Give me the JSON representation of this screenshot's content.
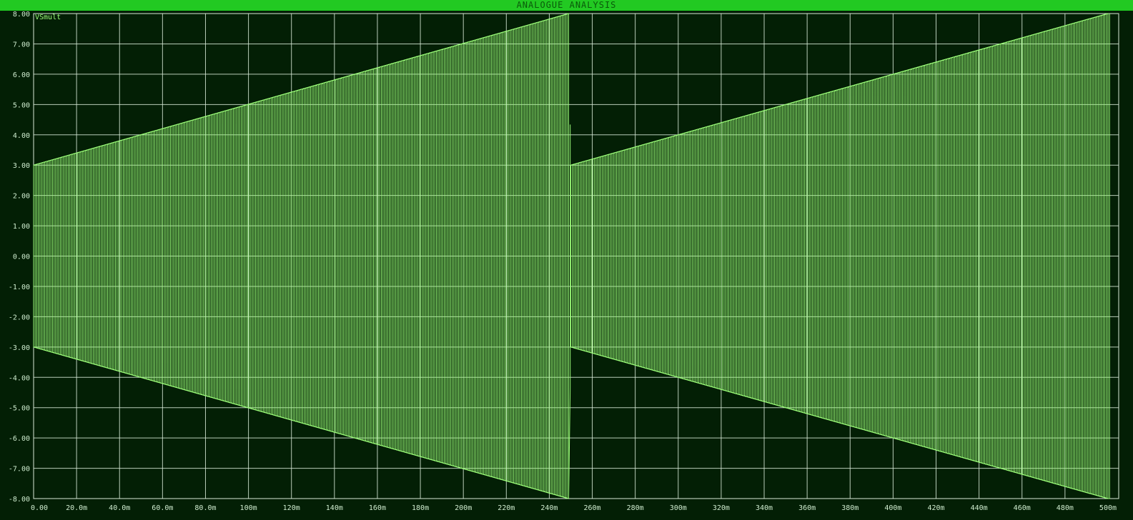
{
  "window": {
    "title": "ANALOGUE ANALYSIS"
  },
  "chart_data": {
    "type": "line",
    "title": "ANALOGUE ANALYSIS",
    "series": [
      {
        "name": "VSmult",
        "description_of_waveform": "carrier oscillating between +envelope and -envelope; envelope magnitude ramps linearly from 3 to 8 over each 250m period",
        "envelope_points": [
          [
            0,
            3.0
          ],
          [
            0.249,
            8.0
          ],
          [
            0.25,
            3.0
          ],
          [
            0.5,
            8.0
          ]
        ],
        "color": "#9dff7a"
      }
    ],
    "xlim": [
      0,
      0.505
    ],
    "ylim": [
      -8,
      8
    ],
    "x_ticks": [
      0,
      0.02,
      0.04,
      0.06,
      0.08,
      0.1,
      0.12,
      0.14,
      0.16,
      0.18,
      0.2,
      0.22,
      0.24,
      0.26,
      0.28,
      0.3,
      0.32,
      0.34,
      0.36,
      0.38,
      0.4,
      0.42,
      0.44,
      0.46,
      0.48,
      0.5
    ],
    "x_tick_labels": [
      "0.00",
      "20.0m",
      "40.0m",
      "60.0m",
      "80.0m",
      "100m",
      "120m",
      "140m",
      "160m",
      "180m",
      "200m",
      "220m",
      "240m",
      "260m",
      "280m",
      "300m",
      "320m",
      "340m",
      "360m",
      "380m",
      "400m",
      "420m",
      "440m",
      "460m",
      "480m",
      "500m"
    ],
    "y_ticks": [
      8,
      7,
      6,
      5,
      4,
      3,
      2,
      1,
      0,
      -1,
      -2,
      -3,
      -4,
      -5,
      -6,
      -7,
      -8
    ],
    "y_tick_labels": [
      "8.00",
      "7.00",
      "6.00",
      "5.00",
      "4.00",
      "3.00",
      "2.00",
      "1.00",
      "0.00",
      "-1.00",
      "-2.00",
      "-3.00",
      "-4.00",
      "-5.00",
      "-6.00",
      "-7.00",
      "-8.00"
    ],
    "grid": true,
    "colors": {
      "background": "#031f05",
      "grid": "#d8ead8",
      "trace": "#9dff7a",
      "axis_text": "#cfeccf",
      "title_bar": "#22c922"
    }
  }
}
